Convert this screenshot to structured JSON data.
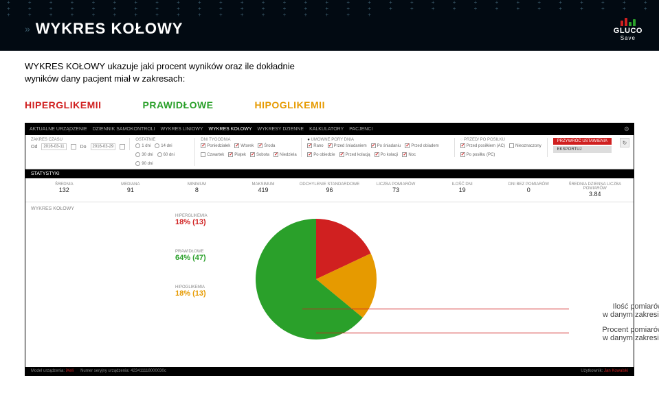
{
  "page_title": "WYKRES KOŁOWY",
  "logo": {
    "line1": "GLUCO",
    "line2": "Save"
  },
  "intro_text": "WYKRES KOŁOWY ukazuje jaki procent wyników oraz ile dokładnie wyników dany pacjent miał w zakresach:",
  "categories": {
    "hiper": "HIPERGLIKEMII",
    "prawid": "PRAWIDŁOWE",
    "hipo": "HIPOGLIKEMII"
  },
  "nav": [
    "AKTUALNE URZĄDZENIE",
    "DZIENNIK SAMOKONTROLI",
    "WYKRES LINIOWY",
    "WYKRES KOŁOWY",
    "WYKRESY DZIENNE",
    "KALKULATORY",
    "PACJENCI"
  ],
  "filters": {
    "zakres_label": "ZAKRES CZASU",
    "od": "Od",
    "od_val": "2016-03-11",
    "do": "Do",
    "do_val": "2016-03-29",
    "ostatnie_label": "OSTATNIE",
    "ostatnie_opts": [
      "1 dni",
      "14 dni",
      "30 dni",
      "60 dni",
      "90 dni"
    ],
    "dni_label": "DNI TYGODNIA",
    "dni": [
      "Poniedziałek",
      "Wtorek",
      "Środa",
      "Czwartek",
      "Piątek",
      "Sobota",
      "Niedziela"
    ],
    "pory_label": "UMOWNE PORY DNIA",
    "pory": [
      "Rano",
      "Przed śniadaniem",
      "Po śniadaniu",
      "Przed obiadem",
      "Po obiedzie",
      "Przed kolacją",
      "Po kolacji",
      "Noc"
    ],
    "posilek_label": "PRZED/ PO POSIŁKU",
    "posilek": [
      "Przed posiłkiem (AC)",
      "Nieoznaczony",
      "Po posiłku (PC)"
    ],
    "btn_restore": "PRZYWRÓĆ USTAWIENIA",
    "btn_export": "EKSPORTUJ"
  },
  "stats_title": "STATYSTYKI",
  "stats": [
    {
      "label": "ŚREDNIA",
      "value": "132"
    },
    {
      "label": "MEDIANA",
      "value": "91"
    },
    {
      "label": "MINIMUM",
      "value": "8"
    },
    {
      "label": "MAKSIMUM",
      "value": "419"
    },
    {
      "label": "ODCHYLENIE STANDARDOWE",
      "value": "96"
    },
    {
      "label": "LICZBA POMIARÓW",
      "value": "73"
    },
    {
      "label": "ILOŚĆ DNI",
      "value": "19"
    },
    {
      "label": "DNI BEZ POMIARÓW",
      "value": "0"
    },
    {
      "label": "ŚREDNIA DZIENNA LICZBA POMIARÓW",
      "value": "3.84"
    }
  ],
  "chart_section_title": "WYKRES KOŁOWY",
  "pie": {
    "type": "pie",
    "slices": [
      {
        "label": "HIPERGLIKEMIA",
        "value": 18,
        "count": 13,
        "color": "#d02020",
        "display": "18% (13)"
      },
      {
        "label": "PRAWIDŁOWE",
        "value": 64,
        "count": 47,
        "color": "#2aa02a",
        "display": "64% (47)"
      },
      {
        "label": "HIPOGLIKEMIA",
        "value": 18,
        "count": 13,
        "color": "#e69a00",
        "display": "18% (13)"
      }
    ],
    "radius": 88,
    "background": "#ffffff"
  },
  "annotations": {
    "a1": "Ilość pomiarów\nw danym zakresie",
    "a2": "Procent pomiarów\nw danym zakresie"
  },
  "statusbar": {
    "model": "Model urządzenia:",
    "model_v": "iXeli",
    "serial": "Numer seryjny urządzenia:",
    "serial_v": "423411118000030c",
    "user": "Użytkownik:",
    "user_v": "Jan Kowalski"
  }
}
